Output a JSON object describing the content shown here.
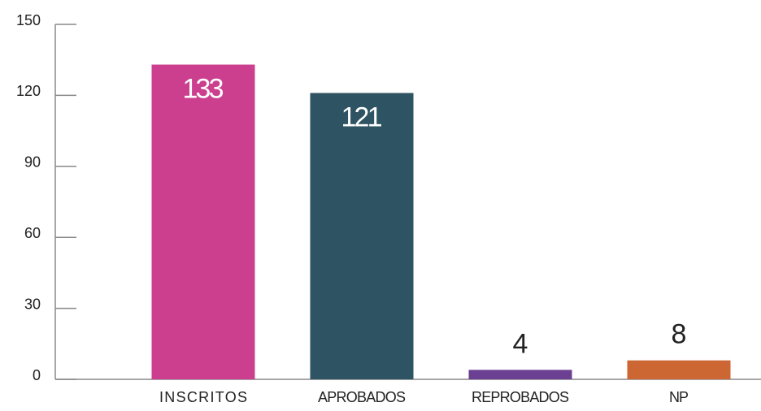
{
  "chart_data": {
    "type": "bar",
    "categories": [
      "INSCRITOS",
      "APROBADOS",
      "REPROBADOS",
      "NP"
    ],
    "values": [
      133,
      121,
      4,
      8
    ],
    "colors": [
      "#cc3f8f",
      "#2e5362",
      "#6b3f91",
      "#cc6633"
    ],
    "ylim": [
      0,
      150
    ],
    "yticks": [
      0,
      30,
      60,
      90,
      120,
      150
    ]
  }
}
